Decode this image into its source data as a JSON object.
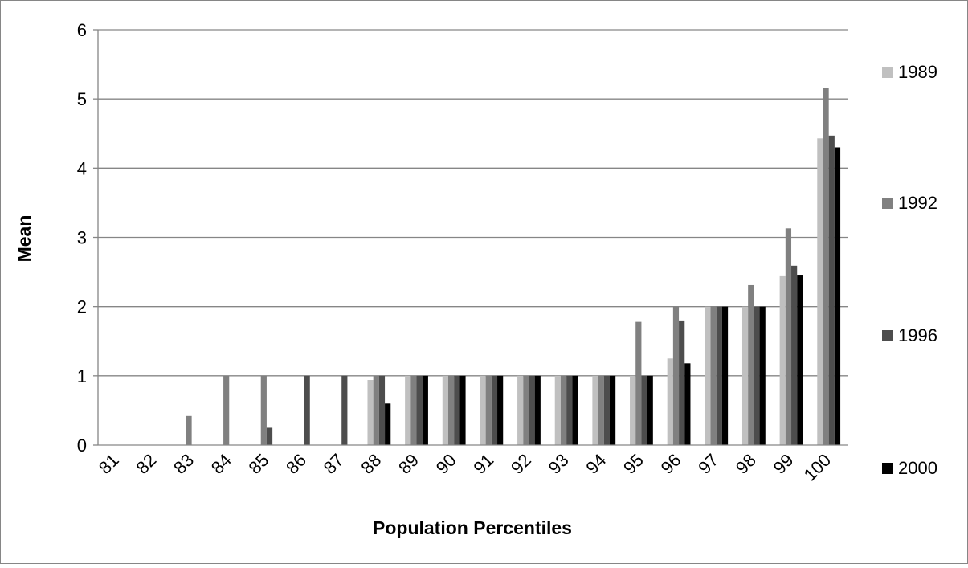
{
  "chart_data": {
    "type": "bar",
    "title": "",
    "xlabel": "Population Percentiles",
    "ylabel": "Mean",
    "ylim": [
      0,
      6
    ],
    "yticks": [
      "0",
      "1",
      "2",
      "3",
      "4",
      "5",
      "6"
    ],
    "grid": true,
    "legend_position": "right",
    "categories": [
      "81",
      "82",
      "83",
      "84",
      "85",
      "86",
      "87",
      "88",
      "89",
      "90",
      "91",
      "92",
      "93",
      "94",
      "95",
      "96",
      "97",
      "98",
      "99",
      "100"
    ],
    "series": [
      {
        "name": "1989",
        "color": "#c0c0c0",
        "values": [
          0,
          0,
          0,
          0,
          0,
          0,
          0,
          0.94,
          1,
          1,
          1,
          1,
          1,
          1,
          1,
          1.25,
          2,
          2,
          2.45,
          4.43
        ]
      },
      {
        "name": "1992",
        "color": "#808080",
        "values": [
          0,
          0,
          0.42,
          1,
          1,
          0,
          0,
          1,
          1,
          1,
          1,
          1,
          1,
          1,
          1.78,
          2,
          2,
          2.31,
          3.13,
          5.16
        ]
      },
      {
        "name": "1996",
        "color": "#4d4d4d",
        "values": [
          0,
          0,
          0,
          0,
          0.25,
          1,
          1,
          1,
          1,
          1,
          1,
          1,
          1,
          1,
          1,
          1.8,
          2,
          2,
          2.59,
          4.47
        ]
      },
      {
        "name": "2000",
        "color": "#000000",
        "values": [
          0,
          0,
          0,
          0,
          0,
          0,
          0,
          0.6,
          1,
          1,
          1,
          1,
          1,
          1,
          1,
          1.18,
          2,
          2,
          2.46,
          4.3
        ]
      }
    ]
  }
}
